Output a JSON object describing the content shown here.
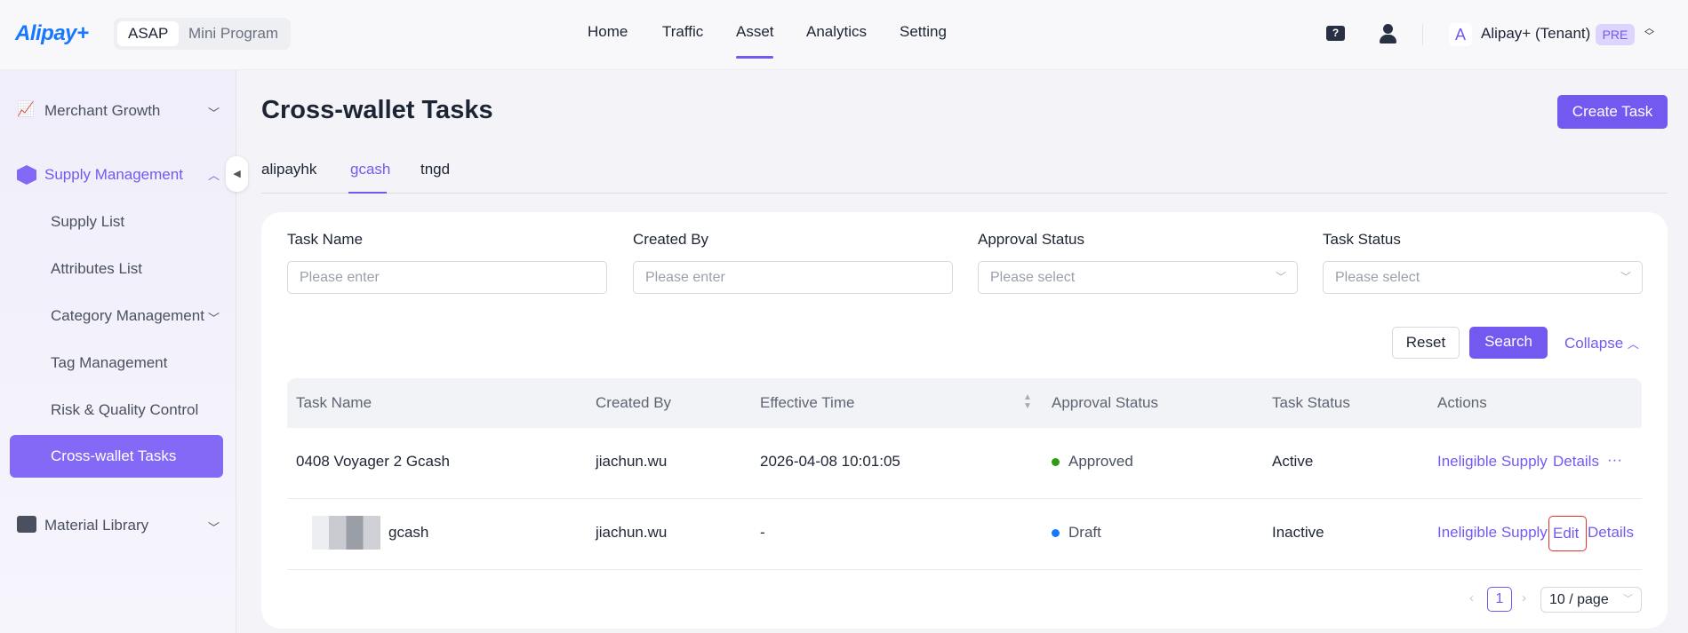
{
  "header": {
    "logo": "Alipay+",
    "app_tabs": [
      "ASAP",
      "Mini Program"
    ],
    "nav": [
      "Home",
      "Traffic",
      "Asset",
      "Analytics",
      "Setting"
    ],
    "active_nav": "Asset",
    "tenant_avatar": "A",
    "tenant": "Alipay+ (Tenant)",
    "env_badge": "PRE"
  },
  "sidebar": {
    "groups": [
      {
        "label": "Merchant Growth"
      },
      {
        "label": "Supply Management",
        "items": [
          "Supply List",
          "Attributes List",
          "Category Management",
          "Tag Management",
          "Risk & Quality Control",
          "Cross-wallet Tasks"
        ]
      },
      {
        "label": "Material Library"
      }
    ],
    "active": "Cross-wallet Tasks"
  },
  "page": {
    "title": "Cross-wallet Tasks",
    "create_button": "Create Task",
    "tabs": [
      "alipayhk",
      "gcash",
      "tngd"
    ],
    "active_tab": "gcash"
  },
  "filters": {
    "fields": [
      {
        "label": "Task Name",
        "placeholder": "Please enter"
      },
      {
        "label": "Created By",
        "placeholder": "Please enter"
      },
      {
        "label": "Approval Status",
        "placeholder": "Please select"
      },
      {
        "label": "Task Status",
        "placeholder": "Please select"
      }
    ],
    "reset": "Reset",
    "search": "Search",
    "collapse": "Collapse"
  },
  "table": {
    "columns": [
      "Task Name",
      "Created By",
      "Effective Time",
      "Approval Status",
      "Task Status",
      "Actions"
    ],
    "rows": [
      {
        "name": "0408 Voyager 2 Gcash",
        "created_by": "jiachun.wu",
        "effective": "2026-04-08 10:01:05",
        "approval": "Approved",
        "approval_color": "#2e9d12",
        "status": "Active",
        "actions": [
          "Ineligible Supply",
          "Details",
          "···"
        ]
      },
      {
        "name": "gcash",
        "created_by": "jiachun.wu",
        "effective": "-",
        "approval": "Draft",
        "approval_color": "#1677ff",
        "status": "Inactive",
        "actions": [
          "Ineligible Supply",
          "Edit",
          "Details"
        ]
      }
    ]
  },
  "pagination": {
    "current": "1",
    "page_size": "10 / page"
  },
  "colors": {
    "accent": "#7459f0"
  }
}
